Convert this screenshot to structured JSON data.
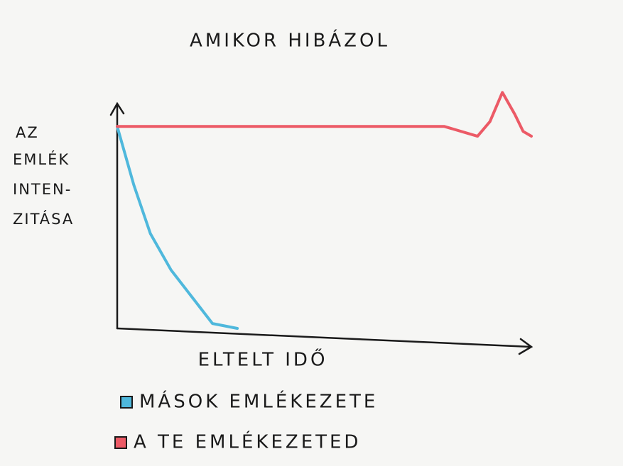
{
  "chart_data": {
    "type": "line",
    "title": "AMIKOR HIBÁZOL",
    "xlabel": "ELTELT IDŐ",
    "ylabel": [
      "AZ",
      "EMLÉK",
      "INTEN-",
      "ZITÁSA"
    ],
    "xlim": [
      0,
      100
    ],
    "ylim": [
      0,
      100
    ],
    "series": [
      {
        "name": "MÁSOK EMLÉKEZETE",
        "color": "#4fb8dc",
        "x": [
          0,
          4,
          8,
          13,
          18,
          23,
          29
        ],
        "values": [
          83,
          59,
          39,
          24,
          13,
          2,
          0
        ]
      },
      {
        "name": "A TE EMLÉKEZETED",
        "color": "#ec5a66",
        "x": [
          0,
          40,
          79,
          87,
          90,
          93,
          96,
          98,
          100
        ],
        "values": [
          83,
          83,
          83,
          79,
          85,
          97,
          88,
          81,
          79
        ]
      }
    ]
  }
}
